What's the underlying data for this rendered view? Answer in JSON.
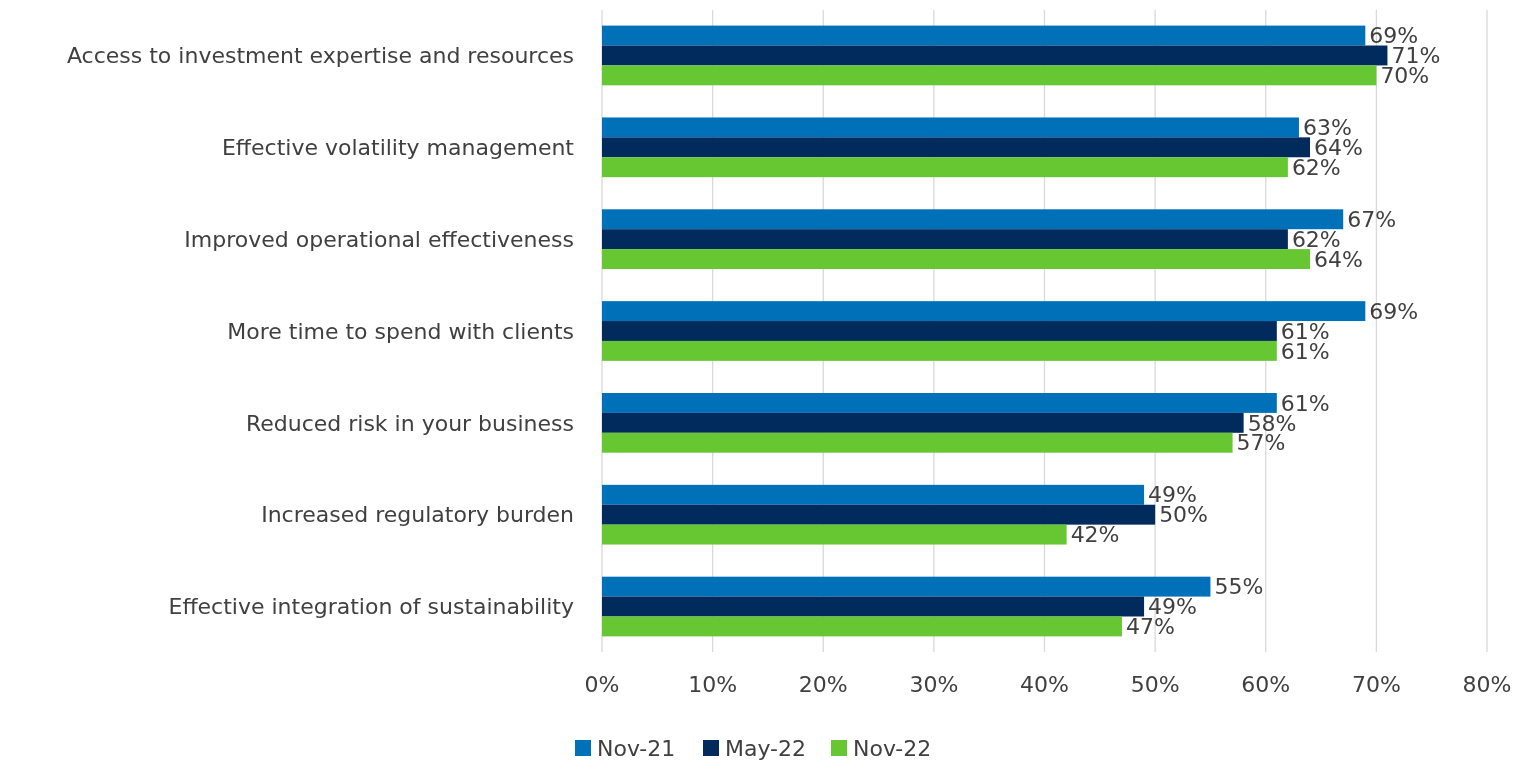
{
  "chart_data": {
    "type": "bar",
    "orientation": "horizontal",
    "categories": [
      "Access to investment expertise and resources",
      "Effective volatility management",
      "Improved operational effectiveness",
      "More time to spend with clients",
      "Reduced risk in your business",
      "Increased regulatory burden",
      "Effective integration of sustainability"
    ],
    "series": [
      {
        "name": "Nov-21",
        "color": "#0070b8",
        "values": [
          69,
          63,
          67,
          69,
          61,
          49,
          55
        ],
        "value_labels": [
          "69%",
          "63%",
          "67%",
          "69%",
          "61%",
          "49%",
          "55%"
        ]
      },
      {
        "name": "May-22",
        "color": "#002b5c",
        "values": [
          71,
          64,
          62,
          61,
          58,
          50,
          49
        ],
        "value_labels": [
          "71%",
          "64%",
          "62%",
          "61%",
          "58%",
          "50%",
          "49%"
        ]
      },
      {
        "name": "Nov-22",
        "color": "#66c733",
        "values": [
          70,
          62,
          64,
          61,
          57,
          42,
          47
        ],
        "value_labels": [
          "70%",
          "62%",
          "64%",
          "61%",
          "57%",
          "42%",
          "47%"
        ]
      }
    ],
    "xlim": [
      0,
      80
    ],
    "xticks": [
      {
        "value": 0,
        "label": "0%"
      },
      {
        "value": 10,
        "label": "10%"
      },
      {
        "value": 20,
        "label": "20%"
      },
      {
        "value": 30,
        "label": "30%"
      },
      {
        "value": 40,
        "label": "40%"
      },
      {
        "value": 50,
        "label": "50%"
      },
      {
        "value": 60,
        "label": "60%"
      },
      {
        "value": 70,
        "label": "70%"
      },
      {
        "value": 80,
        "label": "80%"
      }
    ],
    "grid": "x",
    "legend": "bottom"
  }
}
